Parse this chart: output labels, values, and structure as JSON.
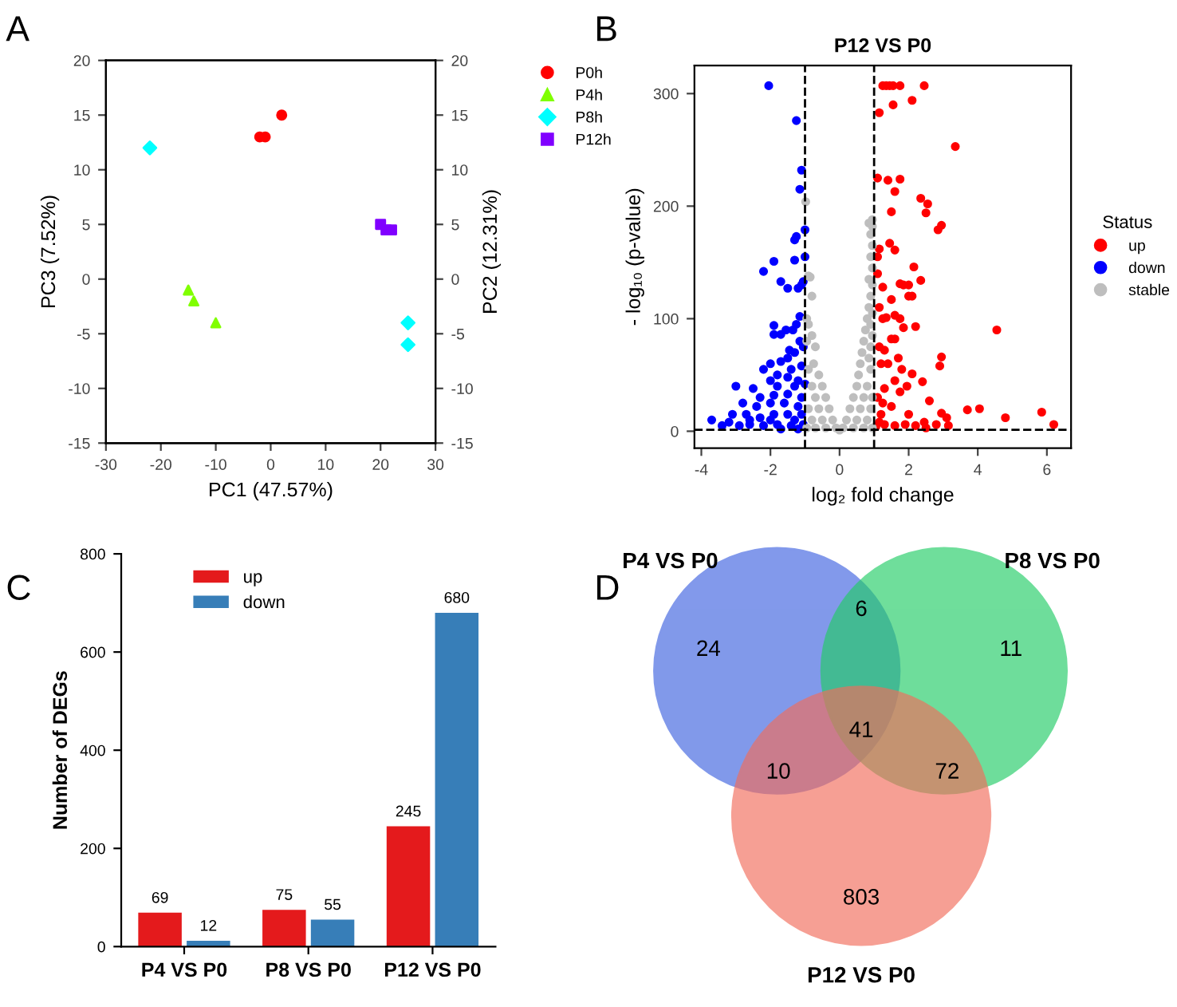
{
  "chart_data": [
    {
      "type": "scatter",
      "annotations": [
        "A"
      ],
      "xlabel": "PC1 (47.57%)",
      "ylabel": "PC3 (7.52%)",
      "y2label": "PC2 (12.31%)",
      "xlim": [
        -30,
        30
      ],
      "ylim": [
        -15,
        20
      ],
      "y2lim": [
        -15,
        20
      ],
      "xticks": [
        -30,
        -20,
        -10,
        0,
        10,
        20,
        30
      ],
      "yticks": [
        -15,
        -10,
        -5,
        0,
        5,
        10,
        15,
        20
      ],
      "y2ticks": [
        -15,
        -10,
        -5,
        0,
        5,
        10,
        15,
        20
      ],
      "legend": "top right",
      "series": [
        {
          "name": "P0h",
          "color": "#ff0000",
          "marker": "circle",
          "x": [
            -2,
            -1,
            2
          ],
          "values": [
            13,
            13,
            15
          ]
        },
        {
          "name": "P4h",
          "color": "#80ff00",
          "marker": "triangle",
          "x": [
            -15,
            -14,
            -10
          ],
          "values": [
            -1,
            -2,
            -4
          ]
        },
        {
          "name": "P8h",
          "color": "#00ffff",
          "marker": "diamond",
          "x": [
            -22,
            25,
            25
          ],
          "values": [
            12,
            -6,
            -4
          ]
        },
        {
          "name": "P12h",
          "color": "#8000ff",
          "marker": "square",
          "x": [
            20,
            21,
            22
          ],
          "values": [
            5,
            4.5,
            4.5
          ]
        }
      ]
    },
    {
      "type": "scatter",
      "annotations": [
        "B"
      ],
      "title": "P12 VS P0",
      "xlabel": "log₂ fold change",
      "ylabel": "- log₁₀ (p-value)",
      "legend_title": "Status",
      "legend": "right",
      "xlim": [
        -4.2,
        6.7
      ],
      "ylim": [
        -15,
        325
      ],
      "xticks": [
        -4,
        -2,
        0,
        2,
        4,
        6
      ],
      "yticks": [
        0,
        100,
        200,
        300
      ],
      "ref_lines": [
        {
          "axis": "x",
          "value": -1,
          "line_style": "dashed"
        },
        {
          "axis": "x",
          "value": 1,
          "line_style": "dashed"
        },
        {
          "axis": "y",
          "value": 1.3,
          "line_style": "dashed"
        }
      ],
      "series": [
        {
          "name": "up",
          "color": "#ff0000",
          "x": [
            1.25,
            1.35,
            1.45,
            1.55,
            1.75,
            2.45,
            2.1,
            1.55,
            1.15,
            3.35,
            1.1,
            1.4,
            1.75,
            1.6,
            2.35,
            2.55,
            2.5,
            1.5,
            2.95,
            2.85,
            1.45,
            1.15,
            1.6,
            1.1,
            2.15,
            1.1,
            1.85,
            2.35,
            1.25,
            1.75,
            2.0,
            1.5,
            2.0,
            2.1,
            1.15,
            1.25,
            1.35,
            1.6,
            1.75,
            1.85,
            2.2,
            4.55,
            1.5,
            1.6,
            1.15,
            1.3,
            1.7,
            2.95,
            2.9,
            1.2,
            1.4,
            1.8,
            2.1,
            1.6,
            2.4,
            1.95,
            1.75,
            1.3,
            1.1,
            2.6,
            1.25,
            1.5,
            2.0,
            1.2,
            3.7,
            4.05,
            5.85,
            2.95,
            3.1,
            4.8,
            6.2,
            3.15,
            2.8,
            2.45,
            2.2,
            1.9,
            1.6,
            1.3,
            1.05,
            1.15,
            2.5
          ],
          "values": [
            307,
            307,
            307,
            307,
            307,
            307,
            294,
            290,
            283,
            253,
            225,
            223,
            224,
            213,
            207,
            202,
            194,
            195,
            183,
            179,
            167,
            162,
            161,
            155,
            146,
            140,
            130,
            134,
            128,
            131,
            130,
            117,
            120,
            120,
            110,
            100,
            101,
            103,
            100,
            92,
            93,
            90,
            82,
            82,
            75,
            72,
            65,
            66,
            58,
            60,
            60,
            55,
            51,
            45,
            44,
            40,
            35,
            38,
            30,
            27,
            25,
            22,
            15,
            15,
            19,
            20,
            17,
            16,
            12,
            12,
            6,
            5,
            6,
            8,
            5,
            6,
            5,
            6,
            4,
            8,
            3
          ]
        },
        {
          "name": "down",
          "color": "#0000ff",
          "x": [
            -2.05,
            -1.25,
            -1.1,
            -1.15,
            -1.0,
            -1.25,
            -1.3,
            -1.9,
            -2.2,
            -1.0,
            -1.3,
            -1.7,
            -1.05,
            -1.1,
            -1.5,
            -1.2,
            -1.15,
            -1.25,
            -1.35,
            -1.9,
            -1.9,
            -1.55,
            -1.7,
            -1.15,
            -1.05,
            -1.3,
            -1.45,
            -1.5,
            -2.0,
            -1.7,
            -1.4,
            -1.1,
            -2.2,
            -1.8,
            -1.5,
            -2.0,
            -1.2,
            -3.0,
            -2.5,
            -1.8,
            -1.3,
            -1.0,
            -2.3,
            -1.9,
            -1.5,
            -1.1,
            -2.8,
            -2.4,
            -2.0,
            -1.6,
            -1.2,
            -3.1,
            -2.7,
            -2.3,
            -1.9,
            -1.5,
            -1.1,
            -3.7,
            -3.4,
            -3.2,
            -2.9,
            -2.6,
            -2.2,
            -1.8,
            -1.4,
            -1.05,
            -2.0,
            -1.3,
            -2.6,
            -1.7,
            -1.2
          ],
          "values": [
            307,
            276,
            232,
            215,
            179,
            173,
            170,
            151,
            142,
            155,
            152,
            133,
            133,
            130,
            127,
            127,
            102,
            95,
            90,
            94,
            86,
            90,
            86,
            80,
            75,
            70,
            72,
            65,
            60,
            62,
            55,
            58,
            55,
            50,
            48,
            45,
            45,
            40,
            38,
            40,
            40,
            42,
            30,
            32,
            33,
            30,
            25,
            22,
            25,
            25,
            22,
            15,
            15,
            12,
            15,
            15,
            15,
            10,
            5,
            8,
            5,
            6,
            5,
            6,
            5,
            6,
            10,
            10,
            10,
            2,
            2
          ]
        },
        {
          "name": "stable",
          "color": "#bebebe",
          "x": [
            -0.98,
            -0.9,
            -0.85,
            -0.8,
            -0.95,
            -0.9,
            -0.8,
            -0.7,
            -0.95,
            -0.75,
            -0.6,
            -0.9,
            -0.5,
            -0.8,
            -0.4,
            -0.7,
            -0.3,
            -0.6,
            -0.9,
            -0.2,
            -0.5,
            -0.8,
            -0.1,
            -0.4,
            -0.7,
            -0.95,
            0,
            0.1,
            0.4,
            0.7,
            0.95,
            0.2,
            0.5,
            0.8,
            0.3,
            0.6,
            0.9,
            0.4,
            0.7,
            0.95,
            0.5,
            0.8,
            0.55,
            0.9,
            0.6,
            0.85,
            0.65,
            0.9,
            0.7,
            0.95,
            0.75,
            0.9,
            0.8,
            0.95,
            0.85,
            0.9,
            0.95,
            0.85,
            0.95,
            0.9,
            0.95,
            0.9,
            0.95,
            0.85,
            0.95
          ],
          "values": [
            204,
            138,
            137,
            120,
            100,
            95,
            85,
            75,
            80,
            60,
            50,
            55,
            40,
            40,
            30,
            30,
            20,
            20,
            20,
            10,
            10,
            10,
            3,
            3,
            3,
            3,
            1,
            3,
            3,
            3,
            3,
            10,
            10,
            10,
            20,
            20,
            20,
            30,
            30,
            30,
            40,
            40,
            50,
            55,
            60,
            65,
            70,
            75,
            80,
            85,
            90,
            95,
            100,
            105,
            110,
            120,
            130,
            135,
            145,
            155,
            165,
            175,
            182,
            185,
            188
          ]
        }
      ]
    },
    {
      "type": "bar",
      "annotations": [
        "C"
      ],
      "ylabel": "Number of DEGs",
      "categories": [
        "P4 VS P0",
        "P8 VS P0",
        "P12 VS P0"
      ],
      "ylim": [
        0,
        800
      ],
      "yticks": [
        0,
        200,
        400,
        600,
        800
      ],
      "legend": "top left",
      "data_labels": true,
      "series": [
        {
          "name": "up",
          "color": "#e41a1c",
          "values": [
            69,
            75,
            245
          ]
        },
        {
          "name": "down",
          "color": "#377eb8",
          "values": [
            12,
            55,
            680
          ]
        }
      ]
    },
    {
      "type": "other",
      "annotations": [
        "D",
        "P4 VS P0",
        "P8 VS P0",
        "P12 VS P0",
        "24",
        "11",
        "803",
        "6",
        "10",
        "72",
        "41"
      ]
    }
  ]
}
